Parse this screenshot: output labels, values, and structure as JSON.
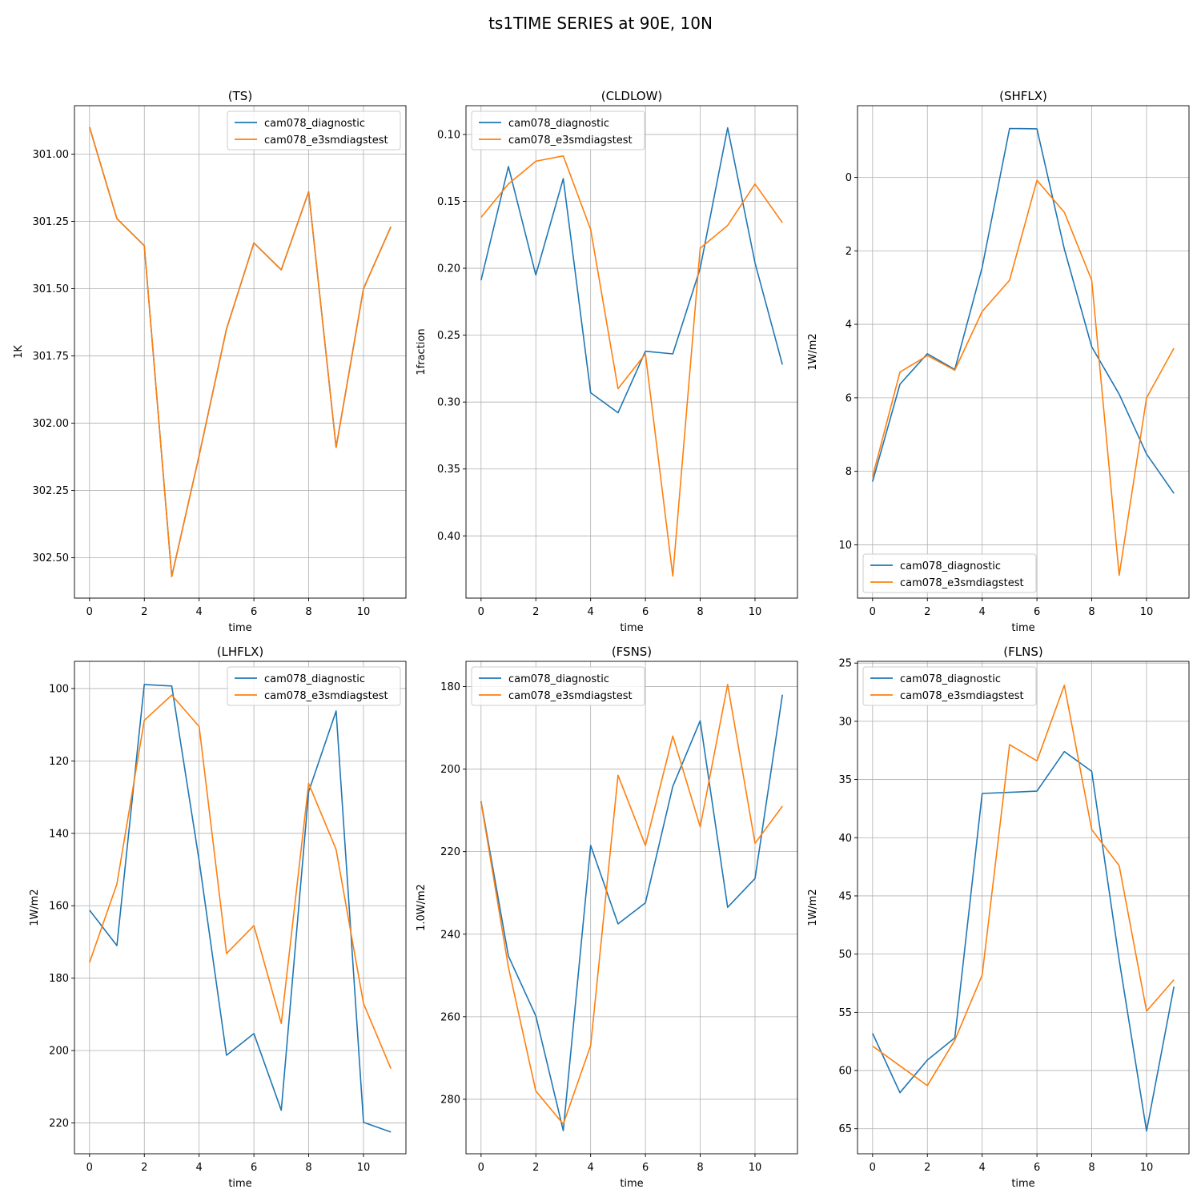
{
  "figure": {
    "title": "ts1TIME SERIES at 90E, 10N"
  },
  "colors": {
    "diagnostic": "#1f77b4",
    "e3smdiagstest": "#ff7f0e",
    "grid": "#b0b0b0"
  },
  "chart_data": [
    {
      "type": "line",
      "title": "(TS)",
      "xlabel": "time",
      "ylabel": "1K",
      "x": [
        0,
        1,
        2,
        3,
        4,
        5,
        6,
        7,
        8,
        9,
        10,
        11
      ],
      "xlim": [
        -0.55,
        11.55
      ],
      "ylim": [
        302.65,
        300.82
      ],
      "y_inverted": true,
      "xticks": [
        0,
        2,
        4,
        6,
        8,
        10
      ],
      "yticks": [
        301.0,
        301.25,
        301.5,
        301.75,
        302.0,
        302.25,
        302.5
      ],
      "ytick_labels": [
        "301.00",
        "301.25",
        "301.50",
        "301.75",
        "302.00",
        "302.25",
        "302.50"
      ],
      "grid": true,
      "legend": "upper right",
      "series": [
        {
          "name": "cam078_diagnostic",
          "values": [
            300.9,
            301.24,
            301.34,
            302.57,
            302.12,
            301.65,
            301.33,
            301.43,
            301.14,
            302.09,
            301.5,
            301.27
          ]
        },
        {
          "name": "cam078_e3smdiagstest",
          "values": [
            300.9,
            301.24,
            301.34,
            302.57,
            302.12,
            301.65,
            301.33,
            301.43,
            301.14,
            302.09,
            301.5,
            301.27
          ]
        }
      ]
    },
    {
      "type": "line",
      "title": "(CLDLOW)",
      "xlabel": "time",
      "ylabel": "1fraction",
      "x": [
        0,
        1,
        2,
        3,
        4,
        5,
        6,
        7,
        8,
        9,
        10,
        11
      ],
      "xlim": [
        -0.55,
        11.55
      ],
      "ylim": [
        0.4465,
        0.0785
      ],
      "y_inverted": true,
      "xticks": [
        0,
        2,
        4,
        6,
        8,
        10
      ],
      "yticks": [
        0.1,
        0.15,
        0.2,
        0.25,
        0.3,
        0.35,
        0.4
      ],
      "ytick_labels": [
        "0.10",
        "0.15",
        "0.20",
        "0.25",
        "0.30",
        "0.35",
        "0.40"
      ],
      "grid": true,
      "legend": "upper left",
      "series": [
        {
          "name": "cam078_diagnostic",
          "values": [
            0.209,
            0.124,
            0.205,
            0.133,
            0.293,
            0.308,
            0.262,
            0.264,
            0.2,
            0.095,
            0.196,
            0.272
          ]
        },
        {
          "name": "cam078_e3smdiagstest",
          "values": [
            0.162,
            0.137,
            0.12,
            0.116,
            0.171,
            0.29,
            0.264,
            0.43,
            0.185,
            0.168,
            0.137,
            0.166
          ]
        }
      ]
    },
    {
      "type": "line",
      "title": "(SHFLX)",
      "xlabel": "time",
      "ylabel": "1W/m2",
      "x": [
        0,
        1,
        2,
        3,
        4,
        5,
        6,
        7,
        8,
        9,
        10,
        11
      ],
      "xlim": [
        -0.55,
        11.55
      ],
      "ylim": [
        11.45,
        -1.95
      ],
      "y_inverted": true,
      "xticks": [
        0,
        2,
        4,
        6,
        8,
        10
      ],
      "yticks": [
        0,
        2,
        4,
        6,
        8,
        10
      ],
      "ytick_labels": [
        "0",
        "2",
        "4",
        "6",
        "8",
        "10"
      ],
      "grid": true,
      "legend": "lower left",
      "series": [
        {
          "name": "cam078_diagnostic",
          "values": [
            8.28,
            5.63,
            4.8,
            5.23,
            2.45,
            -1.33,
            -1.32,
            1.95,
            4.61,
            5.9,
            7.53,
            8.6
          ]
        },
        {
          "name": "cam078_e3smdiagstest",
          "values": [
            8.15,
            5.3,
            4.85,
            5.25,
            3.65,
            2.8,
            0.08,
            0.95,
            2.8,
            10.83,
            6.0,
            4.65
          ]
        }
      ]
    },
    {
      "type": "line",
      "title": "(LHFLX)",
      "xlabel": "time",
      "ylabel": "1W/m2",
      "x": [
        0,
        1,
        2,
        3,
        4,
        5,
        6,
        7,
        8,
        9,
        10,
        11
      ],
      "xlim": [
        -0.55,
        11.55
      ],
      "ylim": [
        228.5,
        92.5
      ],
      "y_inverted": true,
      "xticks": [
        0,
        2,
        4,
        6,
        8,
        10
      ],
      "yticks": [
        100,
        120,
        140,
        160,
        180,
        200,
        220
      ],
      "ytick_labels": [
        "100",
        "120",
        "140",
        "160",
        "180",
        "200",
        "220"
      ],
      "grid": true,
      "legend": "upper right",
      "series": [
        {
          "name": "cam078_diagnostic",
          "values": [
            161.2,
            171.0,
            98.9,
            99.3,
            147.5,
            201.3,
            195.3,
            216.5,
            128.5,
            106.2,
            219.8,
            222.5
          ]
        },
        {
          "name": "cam078_e3smdiagstest",
          "values": [
            175.7,
            154.0,
            108.8,
            101.8,
            110.5,
            173.2,
            165.5,
            192.5,
            126.2,
            144.5,
            187.0,
            205.0
          ]
        }
      ]
    },
    {
      "type": "line",
      "title": "(FSNS)",
      "xlabel": "time",
      "ylabel": "1.0W/m2",
      "x": [
        0,
        1,
        2,
        3,
        4,
        5,
        6,
        7,
        8,
        9,
        10,
        11
      ],
      "xlim": [
        -0.55,
        11.55
      ],
      "ylim": [
        293.2,
        173.9
      ],
      "y_inverted": true,
      "xticks": [
        0,
        2,
        4,
        6,
        8,
        10
      ],
      "yticks": [
        180,
        200,
        220,
        240,
        260,
        280
      ],
      "ytick_labels": [
        "180",
        "200",
        "220",
        "240",
        "260",
        "280"
      ],
      "grid": true,
      "legend": "upper left",
      "series": [
        {
          "name": "cam078_diagnostic",
          "values": [
            207.8,
            245.3,
            259.8,
            287.6,
            218.5,
            237.5,
            232.4,
            204.2,
            188.3,
            233.5,
            226.5,
            182.0
          ]
        },
        {
          "name": "cam078_e3smdiagstest",
          "values": [
            208.0,
            248.0,
            278.0,
            286.0,
            267.0,
            201.5,
            218.5,
            192.0,
            214.0,
            179.5,
            218.0,
            209.0
          ]
        }
      ]
    },
    {
      "type": "line",
      "title": "(FLNS)",
      "xlabel": "time",
      "ylabel": "1W/m2",
      "x": [
        0,
        1,
        2,
        3,
        4,
        5,
        6,
        7,
        8,
        9,
        10,
        11
      ],
      "xlim": [
        -0.55,
        11.55
      ],
      "ylim": [
        67.15,
        24.85
      ],
      "y_inverted": true,
      "xticks": [
        0,
        2,
        4,
        6,
        8,
        10
      ],
      "yticks": [
        25,
        30,
        35,
        40,
        45,
        50,
        55,
        60,
        65
      ],
      "ytick_labels": [
        "25",
        "30",
        "35",
        "40",
        "45",
        "50",
        "55",
        "60",
        "65"
      ],
      "grid": true,
      "legend": "upper left",
      "series": [
        {
          "name": "cam078_diagnostic",
          "values": [
            56.8,
            61.9,
            59.1,
            57.2,
            36.2,
            36.1,
            36.0,
            32.6,
            34.3,
            50.5,
            65.2,
            52.8
          ]
        },
        {
          "name": "cam078_e3smdiagstest",
          "values": [
            57.9,
            59.6,
            61.3,
            57.4,
            51.8,
            32.0,
            33.4,
            26.9,
            39.3,
            42.4,
            54.9,
            52.2
          ]
        }
      ]
    }
  ]
}
